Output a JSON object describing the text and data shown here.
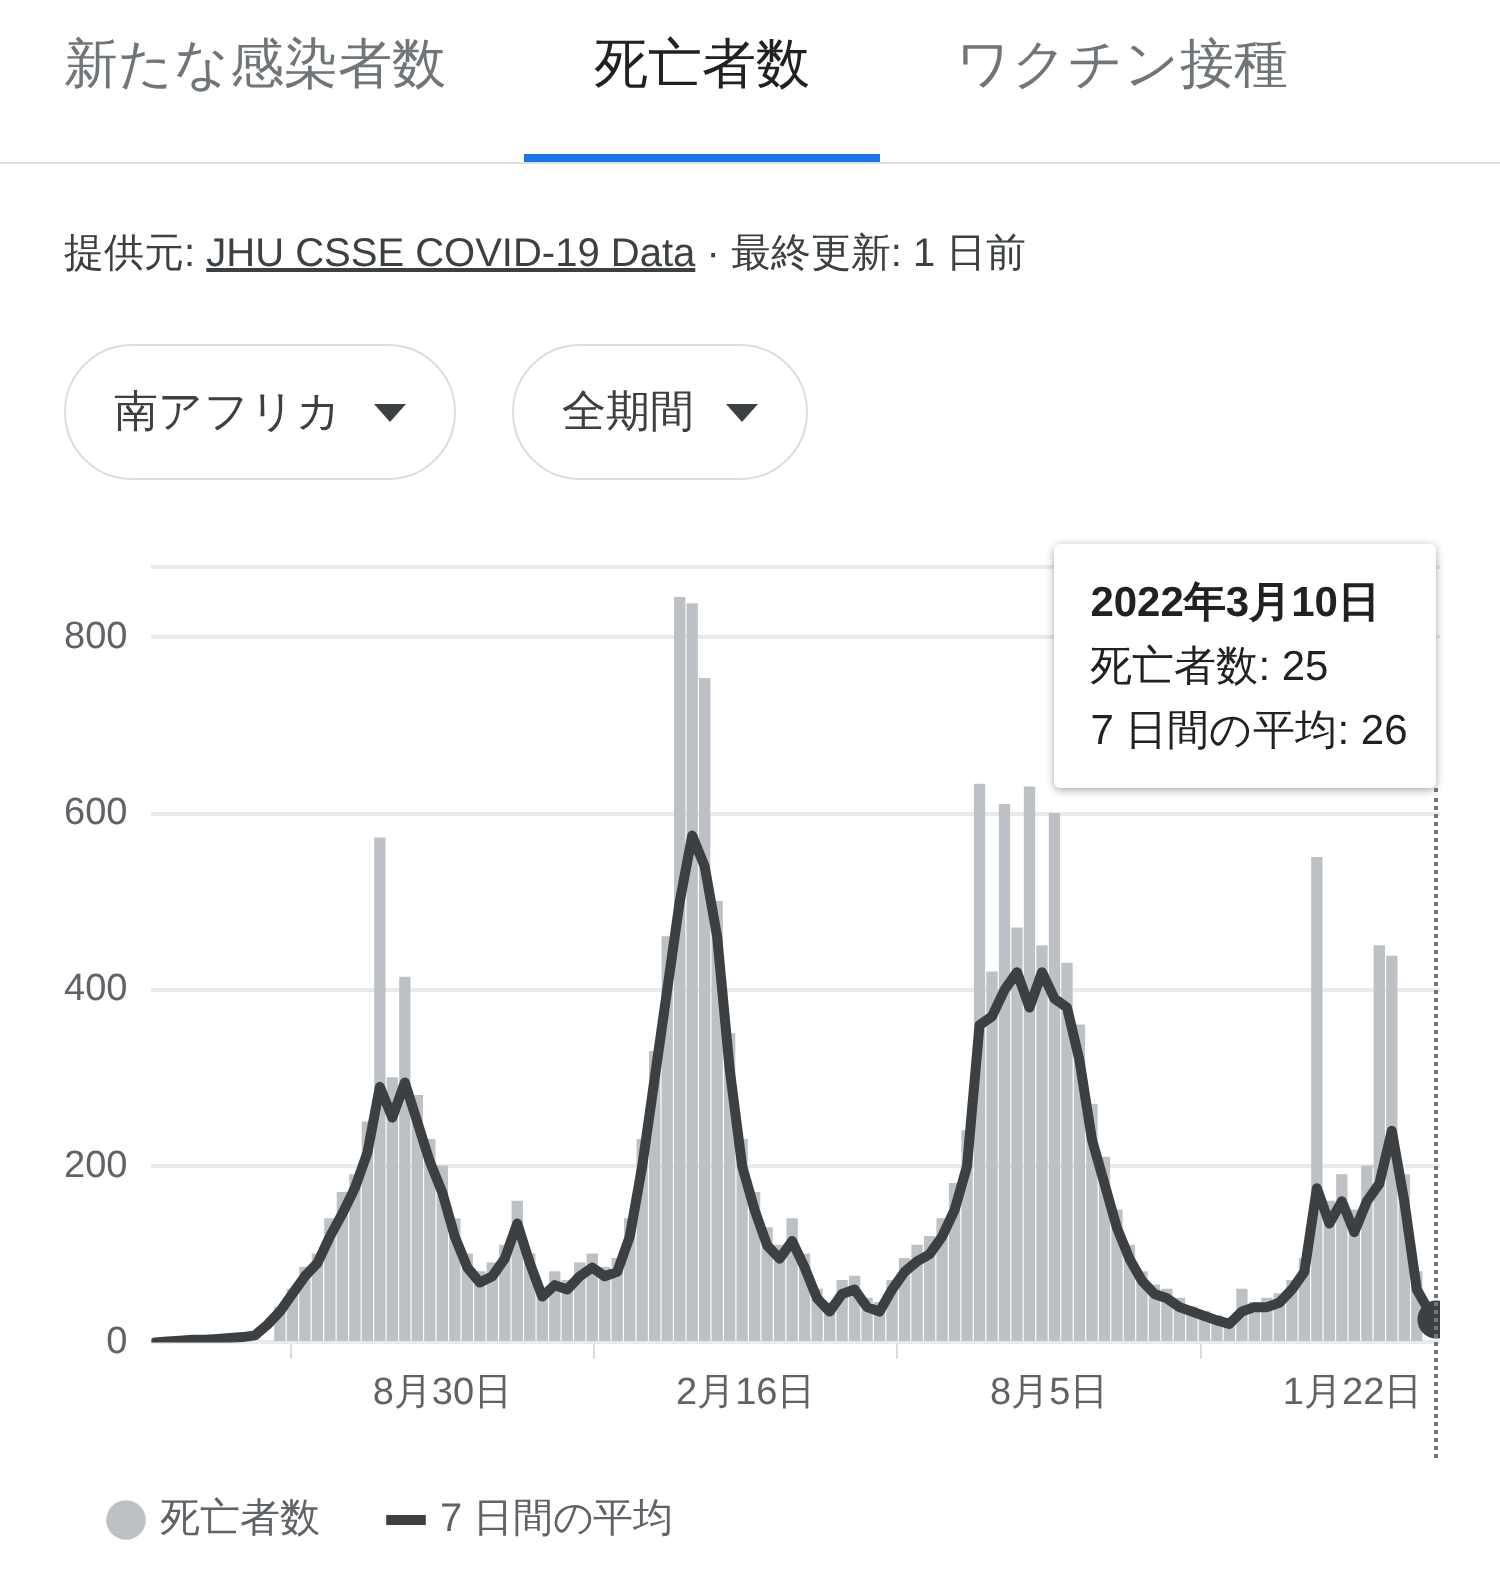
{
  "chart_data": {
    "type": "bar",
    "annotations": [
      "新たな感染者数",
      "死亡者数",
      "ワクチン接種",
      "提供元:",
      "JHU CSSE COVID-19 Data",
      "· 最終更新: 1 日前",
      "南アフリカ",
      "全期間",
      "2022年3月10日",
      "死亡者数: 25",
      "7 日間の平均: 26"
    ],
    "x": [
      "2020-03-22",
      "2020-03-29",
      "2020-04-05",
      "2020-04-12",
      "2020-04-19",
      "2020-04-26",
      "2020-05-03",
      "2020-05-10",
      "2020-05-17",
      "2020-05-24",
      "2020-05-31",
      "2020-06-07",
      "2020-06-14",
      "2020-06-21",
      "2020-06-28",
      "2020-07-05",
      "2020-07-12",
      "2020-07-19",
      "2020-07-26",
      "2020-08-02",
      "2020-08-09",
      "2020-08-16",
      "2020-08-23",
      "2020-08-30",
      "2020-09-06",
      "2020-09-13",
      "2020-09-20",
      "2020-09-27",
      "2020-10-04",
      "2020-10-11",
      "2020-10-18",
      "2020-10-25",
      "2020-11-01",
      "2020-11-08",
      "2020-11-15",
      "2020-11-22",
      "2020-11-29",
      "2020-12-06",
      "2020-12-13",
      "2020-12-20",
      "2020-12-27",
      "2021-01-03",
      "2021-01-10",
      "2021-01-17",
      "2021-01-24",
      "2021-01-31",
      "2021-02-07",
      "2021-02-14",
      "2021-02-21",
      "2021-02-28",
      "2021-03-07",
      "2021-03-14",
      "2021-03-21",
      "2021-03-28",
      "2021-04-04",
      "2021-04-11",
      "2021-04-18",
      "2021-04-25",
      "2021-05-02",
      "2021-05-09",
      "2021-05-16",
      "2021-05-23",
      "2021-05-30",
      "2021-06-06",
      "2021-06-13",
      "2021-06-20",
      "2021-06-27",
      "2021-07-04",
      "2021-07-11",
      "2021-07-18",
      "2021-07-25",
      "2021-08-01",
      "2021-08-08",
      "2021-08-15",
      "2021-08-22",
      "2021-08-29",
      "2021-09-05",
      "2021-09-12",
      "2021-09-19",
      "2021-09-26",
      "2021-10-03",
      "2021-10-10",
      "2021-10-17",
      "2021-10-24",
      "2021-10-31",
      "2021-11-07",
      "2021-11-14",
      "2021-11-21",
      "2021-11-28",
      "2021-12-05",
      "2021-12-12",
      "2021-12-19",
      "2021-12-26",
      "2022-01-02",
      "2022-01-09",
      "2022-01-16",
      "2022-01-23",
      "2022-01-30",
      "2022-02-06",
      "2022-02-13",
      "2022-02-20",
      "2022-02-27",
      "2022-03-06",
      "2022-03-10"
    ],
    "series": [
      {
        "name": "死亡者数",
        "color": "#bdc1c6",
        "values": [
          null,
          null,
          null,
          null,
          null,
          null,
          null,
          null,
          null,
          null,
          40,
          60,
          85,
          100,
          140,
          170,
          190,
          250,
          572,
          300,
          414,
          280,
          230,
          200,
          140,
          100,
          80,
          90,
          110,
          160,
          100,
          60,
          80,
          70,
          90,
          100,
          85,
          95,
          140,
          230,
          330,
          460,
          845,
          838,
          753,
          500,
          350,
          230,
          170,
          130,
          110,
          140,
          100,
          60,
          45,
          70,
          75,
          50,
          45,
          70,
          95,
          110,
          120,
          140,
          180,
          240,
          633,
          420,
          610,
          470,
          630,
          450,
          600,
          430,
          360,
          270,
          210,
          150,
          110,
          80,
          65,
          60,
          50,
          40,
          35,
          30,
          25,
          60,
          45,
          50,
          55,
          70,
          95,
          550,
          160,
          190,
          150,
          200,
          450,
          438,
          190,
          80,
          null,
          null
        ]
      },
      {
        "name": "7 日間の平均",
        "type": "line",
        "color": "#3c4043",
        "values": [
          0,
          1,
          2,
          3,
          3,
          4,
          5,
          6,
          8,
          20,
          35,
          55,
          75,
          90,
          120,
          146,
          175,
          215,
          290,
          255,
          295,
          250,
          205,
          170,
          120,
          85,
          68,
          75,
          95,
          135,
          90,
          52,
          65,
          60,
          75,
          85,
          75,
          80,
          120,
          200,
          300,
          400,
          500,
          575,
          540,
          460,
          310,
          200,
          150,
          110,
          95,
          115,
          85,
          50,
          35,
          55,
          60,
          40,
          35,
          60,
          80,
          92,
          100,
          120,
          150,
          200,
          360,
          370,
          400,
          420,
          380,
          420,
          390,
          380,
          320,
          230,
          180,
          130,
          95,
          70,
          55,
          50,
          40,
          35,
          30,
          25,
          21,
          35,
          40,
          40,
          45,
          60,
          80,
          175,
          135,
          160,
          125,
          160,
          180,
          240,
          160,
          60,
          35,
          26
        ]
      }
    ],
    "xlim": [
      "2020-03-20",
      "2022-03-12"
    ],
    "xticks": [
      {
        "value": "2020-08-30",
        "label": "8月30日"
      },
      {
        "value": "2021-02-16",
        "label": "2月16日"
      },
      {
        "value": "2021-08-05",
        "label": "8月5日"
      },
      {
        "value": "2022-01-22",
        "label": "1月22日"
      }
    ],
    "ylim": [
      0,
      880
    ],
    "yticks": [
      0,
      200,
      400,
      600,
      800,
      {
        "value": 880,
        "label": null
      }
    ],
    "grid": "y",
    "legend": "bottom left"
  }
}
